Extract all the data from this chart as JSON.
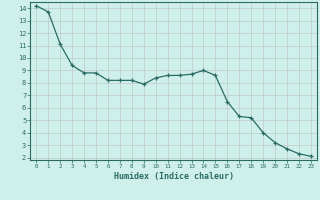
{
  "x": [
    0,
    1,
    2,
    3,
    4,
    5,
    6,
    7,
    8,
    9,
    10,
    11,
    12,
    13,
    14,
    15,
    16,
    17,
    18,
    19,
    20,
    21,
    22,
    23
  ],
  "y": [
    14.2,
    13.7,
    11.1,
    9.4,
    8.8,
    8.8,
    8.2,
    8.2,
    8.2,
    7.9,
    8.4,
    8.6,
    8.6,
    8.7,
    9.0,
    8.6,
    6.5,
    5.3,
    5.2,
    4.0,
    3.2,
    2.7,
    2.3,
    2.1
  ],
  "xlabel": "Humidex (Indice chaleur)",
  "xlim": [
    -0.5,
    23.5
  ],
  "ylim": [
    1.8,
    14.5
  ],
  "yticks": [
    2,
    3,
    4,
    5,
    6,
    7,
    8,
    9,
    10,
    11,
    12,
    13,
    14
  ],
  "xticks": [
    0,
    1,
    2,
    3,
    4,
    5,
    6,
    7,
    8,
    9,
    10,
    11,
    12,
    13,
    14,
    15,
    16,
    17,
    18,
    19,
    20,
    21,
    22,
    23
  ],
  "line_color": "#2a6b65",
  "bg_color": "#cff0ea",
  "grid_color": "#c0c8c8",
  "tick_color": "#2a6b65",
  "label_color": "#2a6b65",
  "border_color": "#2a6b65"
}
